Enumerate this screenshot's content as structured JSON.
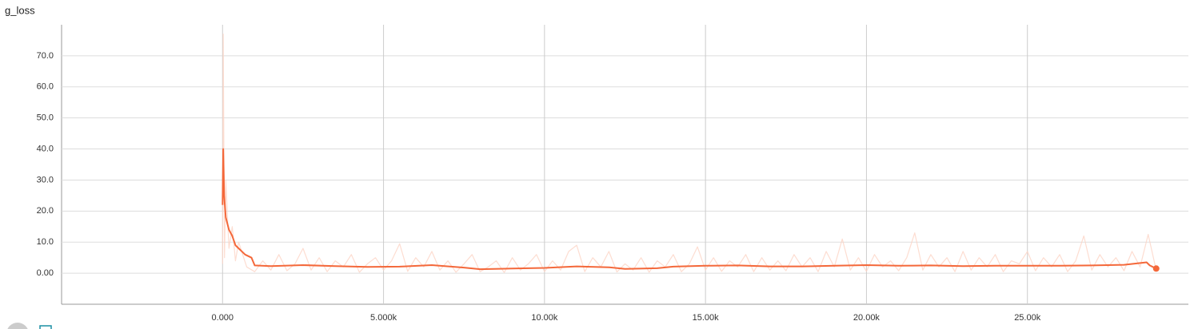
{
  "chart_data": {
    "type": "line",
    "title": "g_loss",
    "xlim": [
      -5000,
      30000
    ],
    "xticks": [
      {
        "value": 0,
        "label": "0.000"
      },
      {
        "value": 5000,
        "label": "5.000k"
      },
      {
        "value": 10000,
        "label": "10.00k"
      },
      {
        "value": 15000,
        "label": "15.00k"
      },
      {
        "value": 20000,
        "label": "20.00k"
      },
      {
        "value": 25000,
        "label": "25.00k"
      }
    ],
    "ylim": [
      -10,
      80
    ],
    "yticks": [
      {
        "value": 0,
        "label": "0.00"
      },
      {
        "value": 10,
        "label": "10.0"
      },
      {
        "value": 20,
        "label": "20.0"
      },
      {
        "value": 30,
        "label": "30.0"
      },
      {
        "value": 40,
        "label": "40.0"
      },
      {
        "value": 50,
        "label": "50.0"
      },
      {
        "value": 60,
        "label": "60.0"
      },
      {
        "value": 70,
        "label": "70.0"
      }
    ],
    "grid": true,
    "raw": {
      "color": "#fcd5c6",
      "x": [
        0,
        20,
        60,
        100,
        200,
        300,
        400,
        500,
        750,
        1000,
        1250,
        1500,
        1750,
        2000,
        2250,
        2500,
        2750,
        3000,
        3250,
        3500,
        3750,
        4000,
        4250,
        4500,
        4750,
        5000,
        5250,
        5500,
        5750,
        6000,
        6250,
        6500,
        6750,
        7000,
        7250,
        7500,
        7750,
        8000,
        8250,
        8500,
        8750,
        9000,
        9250,
        9500,
        9750,
        10000,
        10250,
        10500,
        10750,
        11000,
        11250,
        11500,
        11750,
        12000,
        12250,
        12500,
        12750,
        13000,
        13250,
        13500,
        13750,
        14000,
        14250,
        14500,
        14750,
        15000,
        15250,
        15500,
        15750,
        16000,
        16250,
        16500,
        16750,
        17000,
        17250,
        17500,
        17750,
        18000,
        18250,
        18500,
        18750,
        19000,
        19250,
        19500,
        19750,
        20000,
        20250,
        20500,
        20750,
        21000,
        21250,
        21500,
        21750,
        22000,
        22250,
        22500,
        22750,
        23000,
        23250,
        23500,
        23750,
        24000,
        24250,
        24500,
        24750,
        25000,
        25250,
        25500,
        25750,
        26000,
        26250,
        26500,
        26750,
        27000,
        27250,
        27500,
        27750,
        28000,
        28250,
        28500,
        28750,
        29000
      ],
      "values": [
        3,
        77,
        5,
        30,
        8,
        15,
        4,
        10,
        2,
        0.5,
        4,
        1,
        6,
        0.8,
        3,
        8,
        1,
        5,
        0.5,
        4,
        2,
        6,
        0.3,
        3,
        5,
        1,
        4,
        9.5,
        0.6,
        5,
        2,
        7,
        1,
        4,
        0.3,
        3,
        6,
        0.5,
        2,
        4,
        0.2,
        5,
        1,
        3,
        6,
        0.5,
        4,
        1,
        7,
        9,
        0.5,
        5,
        2,
        7,
        0.4,
        3,
        1,
        5,
        0.3,
        4,
        2,
        6,
        0.5,
        3,
        8.5,
        1,
        5,
        0.6,
        4,
        2,
        6,
        0.5,
        5,
        1,
        4,
        0.8,
        6,
        2,
        5,
        0.5,
        7,
        2,
        11,
        1,
        5,
        0.6,
        6,
        2,
        4,
        0.8,
        5,
        13,
        1,
        6,
        2,
        5,
        0.5,
        7,
        1,
        5,
        2,
        6,
        0.5,
        4,
        3,
        7,
        0.8,
        5,
        2,
        6,
        0.5,
        4,
        12,
        1,
        6,
        2,
        5,
        0.8,
        7,
        2,
        12.5,
        1
      ]
    },
    "smoothed": {
      "color": "#f4683a",
      "x": [
        0,
        20,
        50,
        100,
        200,
        300,
        400,
        500,
        700,
        900,
        1000,
        1500,
        2500,
        3500,
        4500,
        5500,
        6500,
        7500,
        8000,
        9000,
        10000,
        11000,
        12000,
        12500,
        13500,
        14000,
        15000,
        16000,
        17000,
        18000,
        19000,
        20000,
        21000,
        22000,
        23000,
        24000,
        25000,
        26000,
        27000,
        28000,
        28700,
        28800,
        29000
      ],
      "values": [
        22,
        40,
        25,
        18,
        14,
        12,
        9,
        8,
        6,
        5,
        2.5,
        2.3,
        2.6,
        2.3,
        2.0,
        2.1,
        2.6,
        1.8,
        1.3,
        1.5,
        1.7,
        2.2,
        1.9,
        1.4,
        1.6,
        2.1,
        2.4,
        2.5,
        2.2,
        2.2,
        2.4,
        2.6,
        2.4,
        2.5,
        2.3,
        2.4,
        2.4,
        2.4,
        2.5,
        2.7,
        3.5,
        2.5,
        1.5
      ]
    }
  }
}
